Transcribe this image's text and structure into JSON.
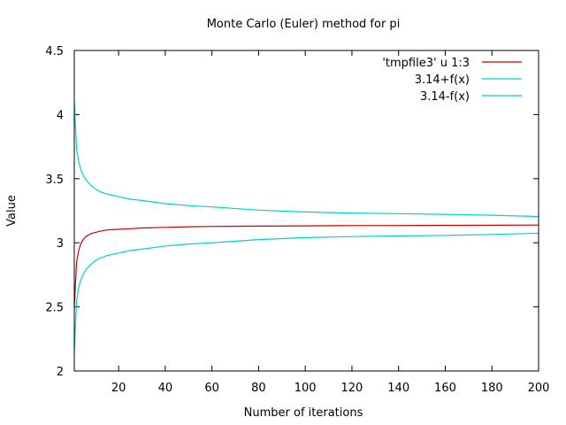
{
  "chart_data": {
    "type": "line",
    "title": "Monte Carlo (Euler) method for pi",
    "xlabel": "Number of iterations",
    "ylabel": "Value",
    "xlim": [
      1,
      200
    ],
    "ylim": [
      2,
      4.5
    ],
    "xticks": [
      20,
      40,
      60,
      80,
      100,
      120,
      140,
      160,
      180,
      200
    ],
    "yticks": [
      2,
      2.5,
      3,
      3.5,
      4,
      4.5
    ],
    "ytick_labels": [
      "2",
      "2.5",
      "3",
      "3.5",
      "4",
      "4.5"
    ],
    "grid": false,
    "legend_position": "top-right",
    "x": [
      1,
      2,
      3,
      4,
      5,
      6,
      8,
      10,
      12,
      15,
      20,
      25,
      30,
      40,
      50,
      60,
      80,
      100,
      120,
      140,
      160,
      180,
      200
    ],
    "series": [
      {
        "name": "'tmpfile3' u 1:3",
        "color": "#cc0000",
        "values": [
          2.5,
          2.85,
          2.95,
          3.0,
          3.03,
          3.05,
          3.07,
          3.08,
          3.09,
          3.1,
          3.105,
          3.11,
          3.115,
          3.12,
          3.125,
          3.128,
          3.13,
          3.132,
          3.134,
          3.135,
          3.136,
          3.137,
          3.138
        ]
      },
      {
        "name": "3.14+f(x)",
        "color": "#00d0d0",
        "values": [
          4.1,
          3.73,
          3.62,
          3.56,
          3.52,
          3.49,
          3.45,
          3.42,
          3.4,
          3.38,
          3.36,
          3.34,
          3.33,
          3.305,
          3.29,
          3.28,
          3.255,
          3.24,
          3.232,
          3.227,
          3.222,
          3.215,
          3.205
        ]
      },
      {
        "name": "3.14-f(x)",
        "color": "#00d0d0",
        "values": [
          2.15,
          2.55,
          2.66,
          2.72,
          2.76,
          2.79,
          2.83,
          2.86,
          2.88,
          2.9,
          2.92,
          2.94,
          2.95,
          2.975,
          2.99,
          3.0,
          3.025,
          3.04,
          3.048,
          3.053,
          3.058,
          3.065,
          3.075
        ]
      }
    ]
  }
}
